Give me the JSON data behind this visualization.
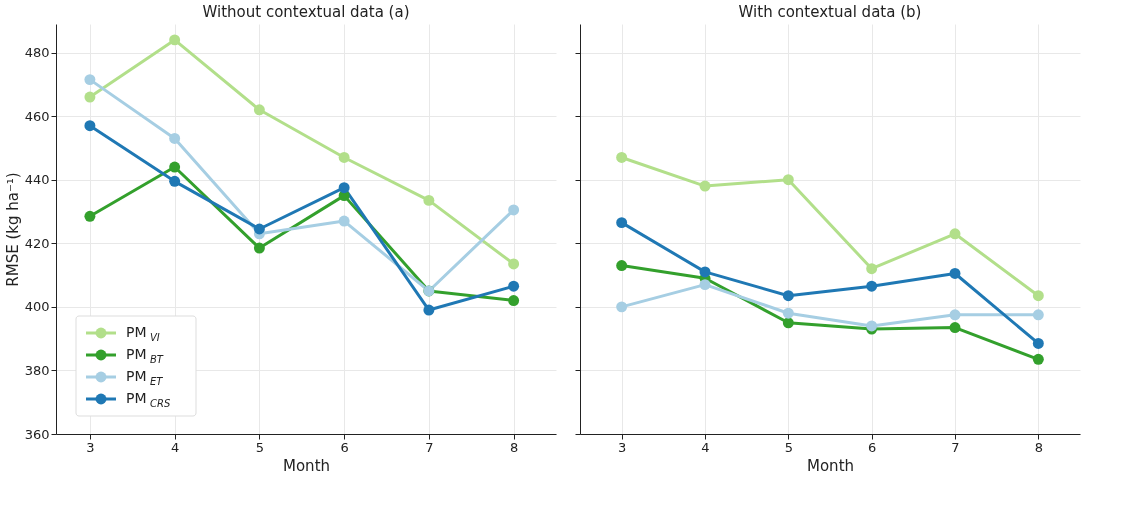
{
  "chart_data": [
    {
      "type": "line",
      "title": "Without contextual data  (a)",
      "xlabel": "Month",
      "ylabel": "RMSE (kg ha⁻¹)",
      "x": [
        3,
        4,
        5,
        6,
        7,
        8
      ],
      "xlim": [
        2.6,
        8.5
      ],
      "xticks": [
        3,
        4,
        5,
        6,
        7,
        8
      ],
      "ylim": [
        360,
        489
      ],
      "yticks": [
        360,
        380,
        400,
        420,
        440,
        460,
        480
      ],
      "grid": true,
      "legend": "bottom left",
      "marker": "circle",
      "line_style": "solid",
      "series": [
        {
          "name": "PM$_{VI}$",
          "color": "#b2df8a",
          "values": [
            466,
            484,
            462,
            447,
            433.5,
            413.5
          ]
        },
        {
          "name": "PM$_{BT}$",
          "color": "#33a02c",
          "values": [
            428.5,
            444,
            418.5,
            435,
            405,
            402
          ]
        },
        {
          "name": "PM$_{ET}$",
          "color": "#a6cee3",
          "values": [
            471.5,
            453,
            423,
            427,
            405,
            430.5
          ]
        },
        {
          "name": "PM$_{CRS}$",
          "color": "#1f78b4",
          "values": [
            457,
            439.5,
            424.5,
            437.5,
            399,
            406.5
          ]
        }
      ]
    },
    {
      "type": "line",
      "title": "With contextual data      (b)",
      "xlabel": "Month",
      "x": [
        3,
        4,
        5,
        6,
        7,
        8
      ],
      "xlim": [
        2.5,
        8.5
      ],
      "xticks": [
        3,
        4,
        5,
        6,
        7,
        8
      ],
      "ylim": [
        360,
        489
      ],
      "yticks": [
        360,
        380,
        400,
        420,
        440,
        460,
        480
      ],
      "grid": true,
      "tick_labels": "x",
      "marker": "circle",
      "line_style": "solid",
      "series": [
        {
          "color": "#b2df8a",
          "values": [
            447,
            438,
            440,
            412,
            423,
            403.5
          ]
        },
        {
          "color": "#33a02c",
          "values": [
            413,
            409,
            395,
            393,
            393.5,
            383.5
          ]
        },
        {
          "color": "#a6cee3",
          "values": [
            400,
            407,
            398,
            394,
            397.5,
            397.5
          ]
        },
        {
          "color": "#1f78b4",
          "values": [
            426.5,
            411,
            403.5,
            406.5,
            410.5,
            388.5
          ]
        }
      ]
    }
  ]
}
